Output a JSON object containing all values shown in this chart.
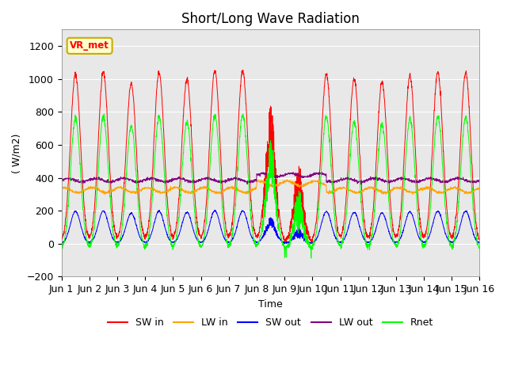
{
  "title": "Short/Long Wave Radiation",
  "xlabel": "Time",
  "ylabel": "( W/m2)",
  "ylim": [
    -200,
    1300
  ],
  "xlim": [
    0,
    15
  ],
  "yticks": [
    -200,
    0,
    200,
    400,
    600,
    800,
    1000,
    1200
  ],
  "xtick_labels": [
    "Jun 1",
    "Jun 2",
    "Jun 3",
    "Jun 4",
    "Jun 5",
    "Jun 6",
    "Jun 7",
    "Jun 8",
    "Jun 9",
    "Jun 10",
    "Jun 11",
    "Jun 12",
    "Jun 13",
    "Jun 14",
    "Jun 15",
    "Jun 16"
  ],
  "legend_labels": [
    "SW in",
    "LW in",
    "SW out",
    "LW out",
    "Rnet"
  ],
  "line_colors": [
    "red",
    "orange",
    "blue",
    "purple",
    "lime"
  ],
  "annotation_text": "VR_met",
  "annotation_bg": "#ffffcc",
  "annotation_border": "#ccaa00",
  "plot_bg": "#e8e8e8",
  "title_fontsize": 12,
  "axis_fontsize": 9,
  "legend_fontsize": 9,
  "n_days": 15,
  "points_per_day": 144,
  "sw_peaks": [
    1030,
    1040,
    970,
    1040,
    1000,
    1050,
    1050,
    840,
    600,
    1030,
    1000,
    980,
    1020,
    1040,
    1040
  ],
  "lw_in_base": 325,
  "lw_out_base": 370
}
